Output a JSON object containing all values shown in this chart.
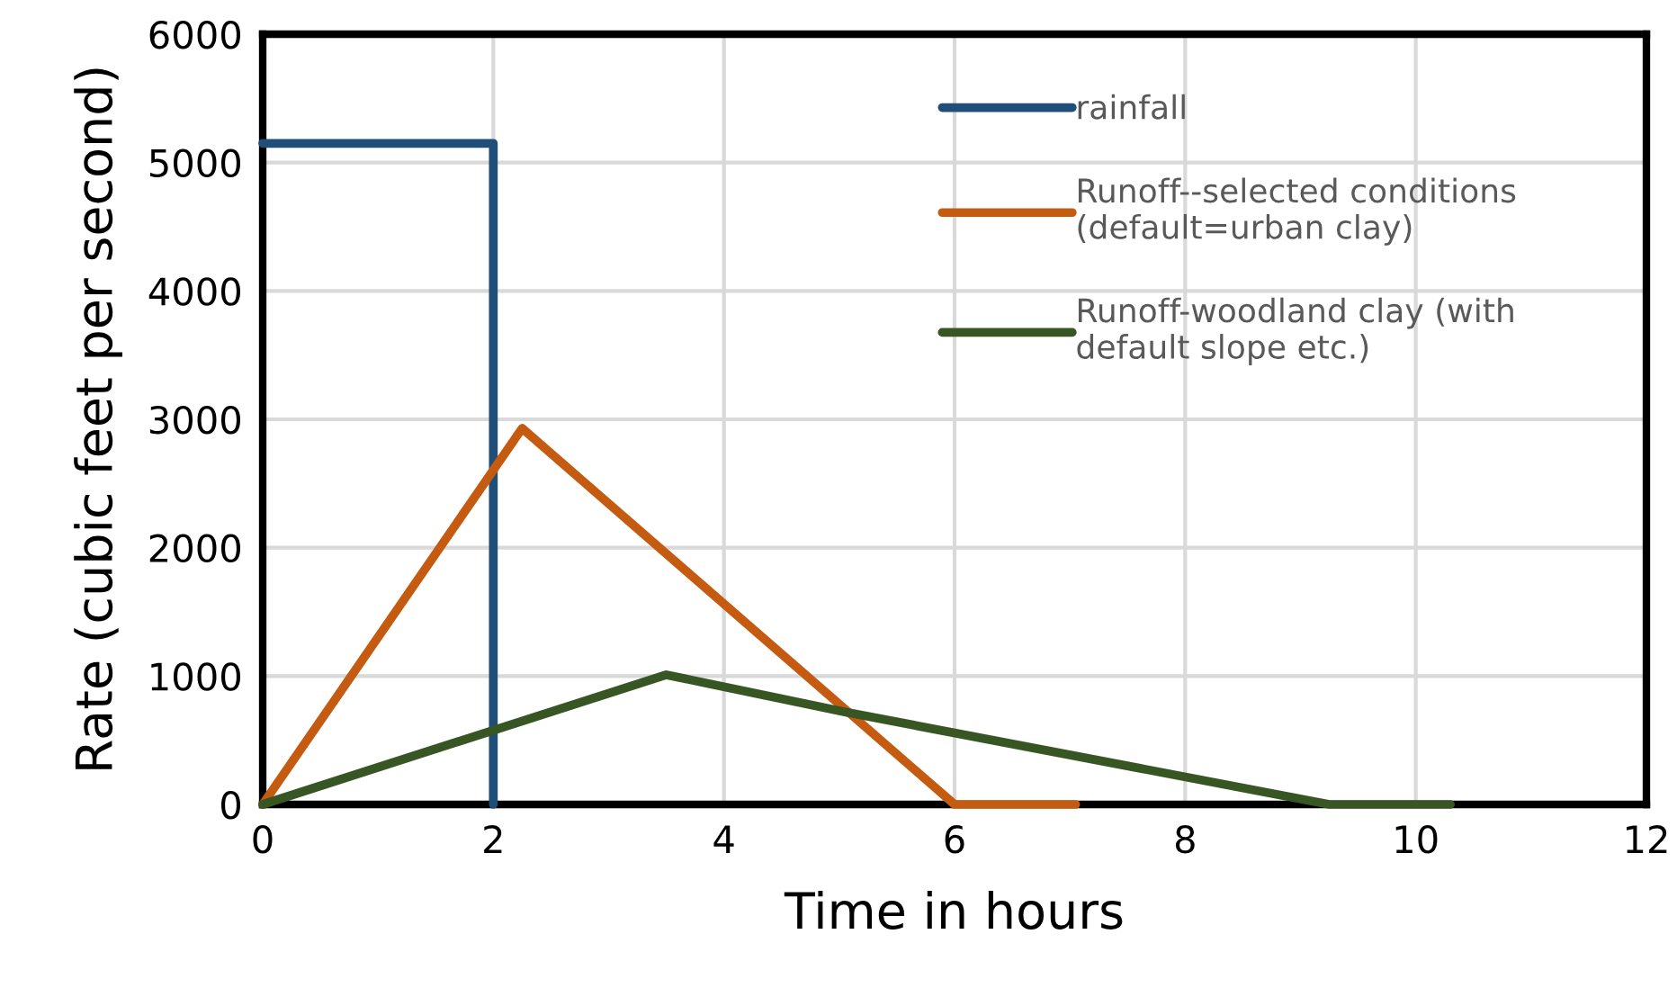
{
  "chart_data": {
    "type": "line",
    "xlabel": "Time in hours",
    "ylabel": "Rate (cubic feet per second)",
    "xlim": [
      0,
      12
    ],
    "xticks": [
      0,
      2,
      4,
      6,
      8,
      10,
      12
    ],
    "ylim": [
      0,
      6000
    ],
    "yticks": [
      0,
      1000,
      2000,
      3000,
      4000,
      5000,
      6000
    ],
    "grid": true,
    "legend": "right",
    "marker": "none",
    "line_style": "solid",
    "series": [
      {
        "name": "rainfall",
        "color": "#1f4e79",
        "x": [
          0,
          2,
          2
        ],
        "values": [
          5150,
          5150,
          0
        ]
      },
      {
        "name": "Runoff--selected conditions\n(default=urban clay)",
        "color": "#c55a11",
        "x": [
          0,
          2.25,
          6,
          7.05
        ],
        "values": [
          0,
          2930,
          0,
          0
        ]
      },
      {
        "name": "Runoff-woodland clay (with\ndefault slope etc.)",
        "color": "#375623",
        "x": [
          0,
          3.5,
          5.05,
          9.25,
          10.3
        ],
        "values": [
          0,
          1010,
          720,
          0,
          0
        ]
      }
    ]
  }
}
